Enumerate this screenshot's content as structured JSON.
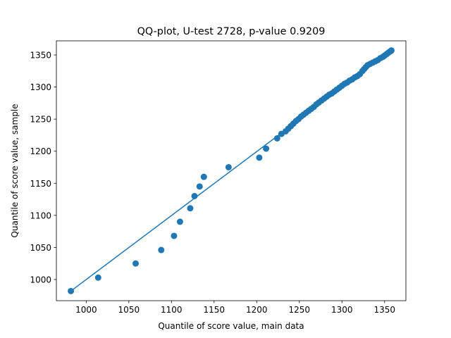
{
  "chart_data": {
    "type": "scatter",
    "title": "QQ-plot, U-test 2728, p-value 0.9209",
    "xlabel": "Quantile of score value, main data",
    "ylabel": "Quantile of score value, sample",
    "xlim": [
      965,
      1375
    ],
    "ylim": [
      967,
      1372
    ],
    "xticks": [
      1000,
      1050,
      1100,
      1150,
      1200,
      1250,
      1300,
      1350
    ],
    "yticks": [
      1000,
      1050,
      1100,
      1150,
      1200,
      1250,
      1300,
      1350
    ],
    "grid": false,
    "legend": "none",
    "marker_color": "#1f77b4",
    "line_color": "#1f77b4",
    "reference_line": {
      "x": [
        982,
        1358
      ],
      "y": [
        982,
        1357
      ]
    },
    "points": {
      "x": [
        982,
        1014,
        1058,
        1088,
        1103,
        1110,
        1122,
        1127,
        1133,
        1138,
        1167,
        1203,
        1211,
        1224,
        1229,
        1234,
        1237,
        1240,
        1243,
        1246,
        1249,
        1252,
        1255,
        1258,
        1261,
        1264,
        1267,
        1270,
        1273,
        1276,
        1279,
        1282,
        1285,
        1288,
        1291,
        1294,
        1297,
        1300,
        1303,
        1306,
        1309,
        1312,
        1315,
        1318,
        1321,
        1324,
        1326,
        1328,
        1330,
        1333,
        1336,
        1339,
        1342,
        1345,
        1348,
        1350,
        1352,
        1354,
        1356,
        1357,
        1358
      ],
      "y": [
        982,
        1003,
        1025,
        1046,
        1068,
        1090,
        1111,
        1130,
        1145,
        1160,
        1175,
        1190,
        1204,
        1220,
        1227,
        1231,
        1235,
        1239,
        1243,
        1247,
        1250,
        1254,
        1257,
        1260,
        1263,
        1266,
        1269,
        1273,
        1276,
        1279,
        1282,
        1285,
        1288,
        1290,
        1293,
        1296,
        1299,
        1302,
        1305,
        1307,
        1310,
        1312,
        1315,
        1317,
        1320,
        1325,
        1328,
        1331,
        1334,
        1336,
        1338,
        1340,
        1342,
        1345,
        1347,
        1349,
        1351,
        1353,
        1355,
        1356,
        1357
      ]
    }
  }
}
